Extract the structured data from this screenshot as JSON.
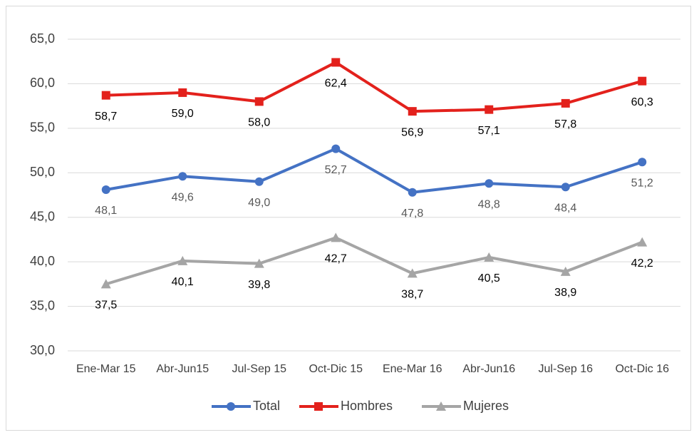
{
  "chart_data": {
    "type": "line",
    "categories": [
      "Ene-Mar 15",
      "Abr-Jun15",
      "Jul-Sep 15",
      "Oct-Dic 15",
      "Ene-Mar 16",
      "Abr-Jun16",
      "Jul-Sep 16",
      "Oct-Dic 16"
    ],
    "series": [
      {
        "name": "Total",
        "color": "#4472c4",
        "marker": "circle",
        "label_color": "#595959",
        "values": [
          48.1,
          49.6,
          49.0,
          52.7,
          47.8,
          48.8,
          48.4,
          51.2
        ],
        "value_labels": [
          "48,1",
          "49,6",
          "49,0",
          "52,7",
          "47,8",
          "48,8",
          "48,4",
          "51,2"
        ]
      },
      {
        "name": "Hombres",
        "color": "#e3211c",
        "marker": "square",
        "label_color": "#000000",
        "values": [
          58.7,
          59.0,
          58.0,
          62.4,
          56.9,
          57.1,
          57.8,
          60.3
        ],
        "value_labels": [
          "58,7",
          "59,0",
          "58,0",
          "62,4",
          "56,9",
          "57,1",
          "57,8",
          "60,3"
        ]
      },
      {
        "name": "Mujeres",
        "color": "#a5a5a5",
        "marker": "triangle",
        "label_color": "#000000",
        "values": [
          37.5,
          40.1,
          39.8,
          42.7,
          38.7,
          40.5,
          38.9,
          42.2
        ],
        "value_labels": [
          "37,5",
          "40,1",
          "39,8",
          "42,7",
          "38,7",
          "40,5",
          "38,9",
          "42,2"
        ]
      }
    ],
    "ylim": [
      30,
      65
    ],
    "yticks": [
      {
        "value": 30,
        "label": "30,0"
      },
      {
        "value": 35,
        "label": "35,0"
      },
      {
        "value": 40,
        "label": "40,0"
      },
      {
        "value": 45,
        "label": "45,0"
      },
      {
        "value": 50,
        "label": "50,0"
      },
      {
        "value": 55,
        "label": "55,0"
      },
      {
        "value": 60,
        "label": "60,0"
      },
      {
        "value": 65,
        "label": "65,0"
      }
    ],
    "grid": true,
    "legend": "bottom"
  }
}
